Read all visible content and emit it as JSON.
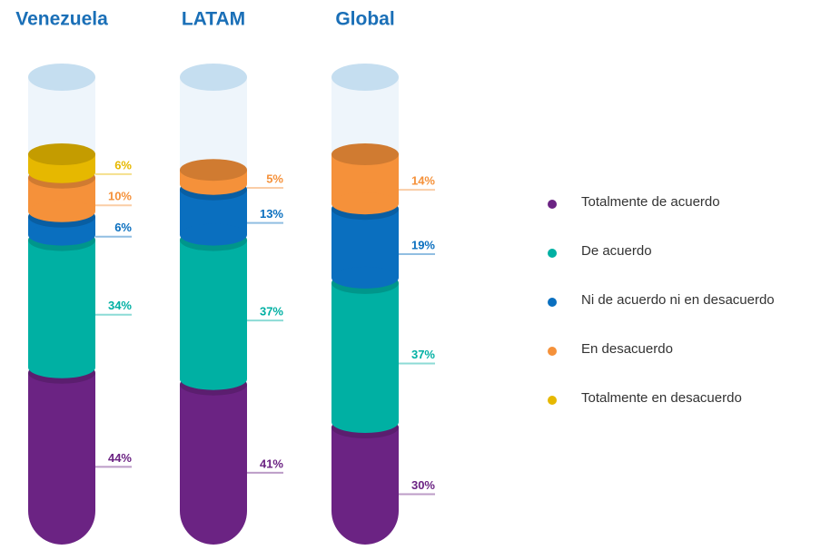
{
  "chart_data": {
    "type": "stacked-cylinder",
    "categories": [
      "Venezuela",
      "LATAM",
      "Global"
    ],
    "series": [
      {
        "name": "Totalmente de acuerdo",
        "color": "#6b2383",
        "values": [
          44,
          41,
          30
        ],
        "value_labels": [
          "44%",
          "41%",
          "30%"
        ]
      },
      {
        "name": "De acuerdo",
        "color": "#00b0a3",
        "values": [
          34,
          37,
          37
        ],
        "value_labels": [
          "34%",
          "37%",
          "37%"
        ]
      },
      {
        "name": "Ni de acuerdo ni en desacuerdo",
        "color": "#0a6fbf",
        "values": [
          6,
          13,
          19
        ],
        "value_labels": [
          "6%",
          "13%",
          "19%"
        ]
      },
      {
        "name": "En desacuerdo",
        "color": "#f5913a",
        "values": [
          10,
          5,
          14
        ],
        "value_labels": [
          "10%",
          "5%",
          "14%"
        ]
      },
      {
        "name": "Totalmente en desacuerdo",
        "color": "#e6b800",
        "values": [
          6,
          null,
          null
        ],
        "value_labels": [
          "6%",
          null,
          null
        ]
      }
    ]
  }
}
